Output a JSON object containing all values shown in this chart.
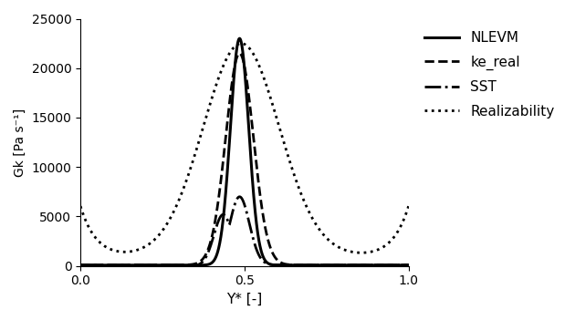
{
  "title": "",
  "xlabel": "Y* [-]",
  "ylabel": "Gk [Pa s⁻¹]",
  "xlim": [
    0,
    1
  ],
  "ylim": [
    0,
    25000
  ],
  "yticks": [
    0,
    5000,
    10000,
    15000,
    20000,
    25000
  ],
  "xticks": [
    0,
    0.5,
    1
  ],
  "legend": [
    {
      "label": "NLEVM",
      "linestyle": "solid",
      "linewidth": 2.2,
      "color": "#000000"
    },
    {
      "label": "ke_real",
      "linestyle": "dashed",
      "linewidth": 2.0,
      "color": "#000000"
    },
    {
      "label": "SST",
      "linestyle": "dashdot",
      "linewidth": 2.0,
      "color": "#000000"
    },
    {
      "label": "Realizability",
      "linestyle": "dotted",
      "linewidth": 2.0,
      "color": "#000000"
    }
  ],
  "background_color": "#ffffff",
  "figsize": [
    6.3,
    3.51
  ],
  "dpi": 100
}
